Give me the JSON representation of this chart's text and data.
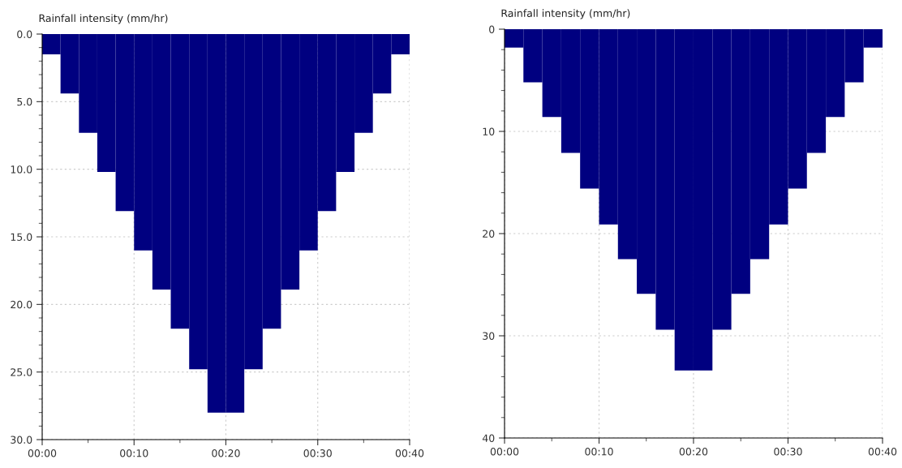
{
  "chart_data": [
    {
      "type": "histogram",
      "ylabel": "Rainfall intensity (mm/hr)",
      "color": "#000080",
      "grid": true,
      "bins": [
        0,
        0.0333,
        0.0667,
        0.1,
        0.1333,
        0.1667,
        0.2,
        0.2333,
        0.2667,
        0.3,
        0.3333,
        0.3667,
        0.4,
        0.4333,
        0.4667,
        0.5,
        0.5333,
        0.5667,
        0.6,
        0.6333,
        0.6667
      ],
      "values": [
        1.5,
        4.4,
        7.3,
        10.2,
        13.1,
        16.0,
        18.9,
        21.8,
        24.8,
        28.0,
        28.0,
        24.8,
        21.8,
        18.9,
        16.0,
        13.1,
        10.2,
        7.3,
        4.4,
        1.5
      ],
      "xlim": [
        0,
        0.6667
      ],
      "xticks": [
        {
          "value": 0,
          "label": "00:00"
        },
        {
          "value": 0.0833,
          "label": null
        },
        {
          "value": 0.1667,
          "label": "00:10"
        },
        {
          "value": 0.25,
          "label": null
        },
        {
          "value": 0.3333,
          "label": "00:20"
        },
        {
          "value": 0.4167,
          "label": null
        },
        {
          "value": 0.5,
          "label": "00:30"
        },
        {
          "value": 0.5833,
          "label": null
        },
        {
          "value": 0.6667,
          "label": "00:40"
        }
      ],
      "ylim": [
        30,
        0
      ],
      "yticks": [
        {
          "value": 0,
          "label": "0.0"
        },
        {
          "value": 1,
          "label": null
        },
        {
          "value": 2,
          "label": null
        },
        {
          "value": 3,
          "label": null
        },
        {
          "value": 4,
          "label": null
        },
        {
          "value": 5,
          "label": "5.0"
        },
        {
          "value": 6,
          "label": null
        },
        {
          "value": 7,
          "label": null
        },
        {
          "value": 8,
          "label": null
        },
        {
          "value": 9,
          "label": null
        },
        {
          "value": 10,
          "label": "10.0"
        },
        {
          "value": 11,
          "label": null
        },
        {
          "value": 12,
          "label": null
        },
        {
          "value": 13,
          "label": null
        },
        {
          "value": 14,
          "label": null
        },
        {
          "value": 15,
          "label": "15.0"
        },
        {
          "value": 16,
          "label": null
        },
        {
          "value": 17,
          "label": null
        },
        {
          "value": 18,
          "label": null
        },
        {
          "value": 19,
          "label": null
        },
        {
          "value": 20,
          "label": "20.0"
        },
        {
          "value": 21,
          "label": null
        },
        {
          "value": 22,
          "label": null
        },
        {
          "value": 23,
          "label": null
        },
        {
          "value": 24,
          "label": null
        },
        {
          "value": 25,
          "label": "25.0"
        },
        {
          "value": 26,
          "label": null
        },
        {
          "value": 27,
          "label": null
        },
        {
          "value": 28,
          "label": null
        },
        {
          "value": 29,
          "label": null
        },
        {
          "value": 30,
          "label": "30.0"
        }
      ]
    },
    {
      "type": "histogram",
      "ylabel": "Rainfall intensity (mm/hr)",
      "color": "#000080",
      "grid": true,
      "bins": [
        0,
        0.0333,
        0.0667,
        0.1,
        0.1333,
        0.1667,
        0.2,
        0.2333,
        0.2667,
        0.3,
        0.3333,
        0.3667,
        0.4,
        0.4333,
        0.4667,
        0.5,
        0.5333,
        0.5667,
        0.6,
        0.6333,
        0.6667
      ],
      "values": [
        1.8,
        5.2,
        8.6,
        12.1,
        15.6,
        19.1,
        22.5,
        25.9,
        29.4,
        33.4,
        33.4,
        29.4,
        25.9,
        22.5,
        19.1,
        15.6,
        12.1,
        8.6,
        5.2,
        1.8
      ],
      "xlim": [
        0,
        0.6667
      ],
      "xticks": [
        {
          "value": 0,
          "label": "00:00"
        },
        {
          "value": 0.0833,
          "label": null
        },
        {
          "value": 0.1667,
          "label": "00:10"
        },
        {
          "value": 0.25,
          "label": null
        },
        {
          "value": 0.3333,
          "label": "00:20"
        },
        {
          "value": 0.4167,
          "label": null
        },
        {
          "value": 0.5,
          "label": "00:30"
        },
        {
          "value": 0.5833,
          "label": null
        },
        {
          "value": 0.6667,
          "label": "00:40"
        }
      ],
      "ylim": [
        40,
        0
      ],
      "yticks": [
        0,
        {
          "value": 2,
          "label": null
        },
        {
          "value": 4,
          "label": null
        },
        {
          "value": 6,
          "label": null
        },
        {
          "value": 8,
          "label": null
        },
        10,
        {
          "value": 12,
          "label": null
        },
        {
          "value": 14,
          "label": null
        },
        {
          "value": 16,
          "label": null
        },
        {
          "value": 18,
          "label": null
        },
        20,
        {
          "value": 22,
          "label": null
        },
        {
          "value": 24,
          "label": null
        },
        {
          "value": 26,
          "label": null
        },
        {
          "value": 28,
          "label": null
        },
        30,
        {
          "value": 32,
          "label": null
        },
        {
          "value": 34,
          "label": null
        },
        {
          "value": 36,
          "label": null
        },
        {
          "value": 38,
          "label": null
        },
        40
      ]
    }
  ]
}
